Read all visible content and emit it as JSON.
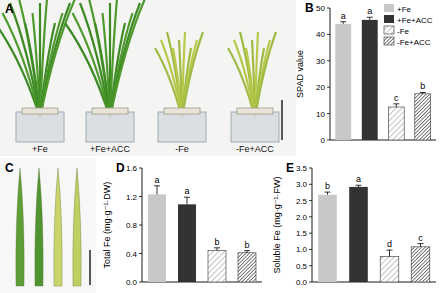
{
  "photos": [
    {
      "label": "A",
      "captions": [
        "+Fe",
        "+Fe+ACC",
        "-Fe",
        "-Fe+ACC"
      ]
    },
    {
      "label": "C"
    }
  ],
  "chart_data": [
    {
      "type": "bar",
      "annotations": [
        "B"
      ],
      "ylabel": "SPAD value",
      "categories": [
        null
      ],
      "ylim": [
        0,
        50
      ],
      "yticks": [
        0,
        10,
        20,
        30,
        40,
        50
      ],
      "legend": "upper right",
      "series": [
        {
          "name": "+Fe",
          "color": "#c8c8c8",
          "values": [
            44
          ],
          "errors": [
            0.8
          ],
          "annotations": [
            "a"
          ]
        },
        {
          "name": "+Fe+ACC",
          "color": "#333333",
          "values": [
            45.5
          ],
          "errors": [
            1
          ],
          "annotations": [
            "a"
          ]
        },
        {
          "name": "-Fe",
          "color": "#888888",
          "values": [
            12.5
          ],
          "errors": [
            1.2
          ],
          "annotations": [
            "c"
          ]
        },
        {
          "name": "-Fe+ACC",
          "color": "#333333",
          "values": [
            17.5
          ],
          "errors": [
            0.5
          ],
          "annotations": [
            "b"
          ]
        }
      ]
    },
    {
      "type": "bar",
      "annotations": [
        "D"
      ],
      "ylabel": "Total Fe (mg·g⁻¹·DW)",
      "categories": [
        null
      ],
      "ylim": [
        0,
        1.6
      ],
      "yticks": [
        {
          "value": 0,
          "label": "0.0"
        },
        0.4,
        0.8,
        1.2,
        1.6
      ],
      "series": [
        {
          "name": "+Fe",
          "color": "#c8c8c8",
          "values": [
            1.23
          ],
          "errors": [
            0.12
          ],
          "annotations": [
            "a"
          ]
        },
        {
          "name": "+Fe+ACC",
          "color": "#333333",
          "values": [
            1.09
          ],
          "errors": [
            0.1
          ],
          "annotations": [
            "a"
          ]
        },
        {
          "name": "-Fe",
          "color": "#888888",
          "values": [
            0.44
          ],
          "errors": [
            0.04
          ],
          "annotations": [
            "b"
          ]
        },
        {
          "name": "-Fe+ACC",
          "color": "#333333",
          "values": [
            0.41
          ],
          "errors": [
            0.03
          ],
          "annotations": [
            "b"
          ]
        }
      ]
    },
    {
      "type": "bar",
      "annotations": [
        "E"
      ],
      "ylabel": "Soluble Fe (mg·g⁻¹·FW)",
      "categories": [
        null
      ],
      "ylim": [
        0,
        3.5
      ],
      "yticks": [
        {
          "value": 0,
          "label": "0.0"
        },
        0.5,
        {
          "value": 1,
          "label": "1.0"
        },
        1.5,
        {
          "value": 2,
          "label": "2.0"
        },
        2.5,
        {
          "value": 3,
          "label": "3.0"
        },
        3.5
      ],
      "series": [
        {
          "name": "+Fe",
          "color": "#c8c8c8",
          "values": [
            2.68
          ],
          "errors": [
            0.08
          ],
          "annotations": [
            "b"
          ]
        },
        {
          "name": "+Fe+ACC",
          "color": "#333333",
          "values": [
            2.92
          ],
          "errors": [
            0.05
          ],
          "annotations": [
            "a"
          ]
        },
        {
          "name": "-Fe",
          "color": "#888888",
          "values": [
            0.78
          ],
          "errors": [
            0.2
          ],
          "annotations": [
            "d"
          ]
        },
        {
          "name": "-Fe+ACC",
          "color": "#333333",
          "values": [
            1.08
          ],
          "errors": [
            0.1
          ],
          "annotations": [
            "c"
          ]
        }
      ]
    }
  ]
}
